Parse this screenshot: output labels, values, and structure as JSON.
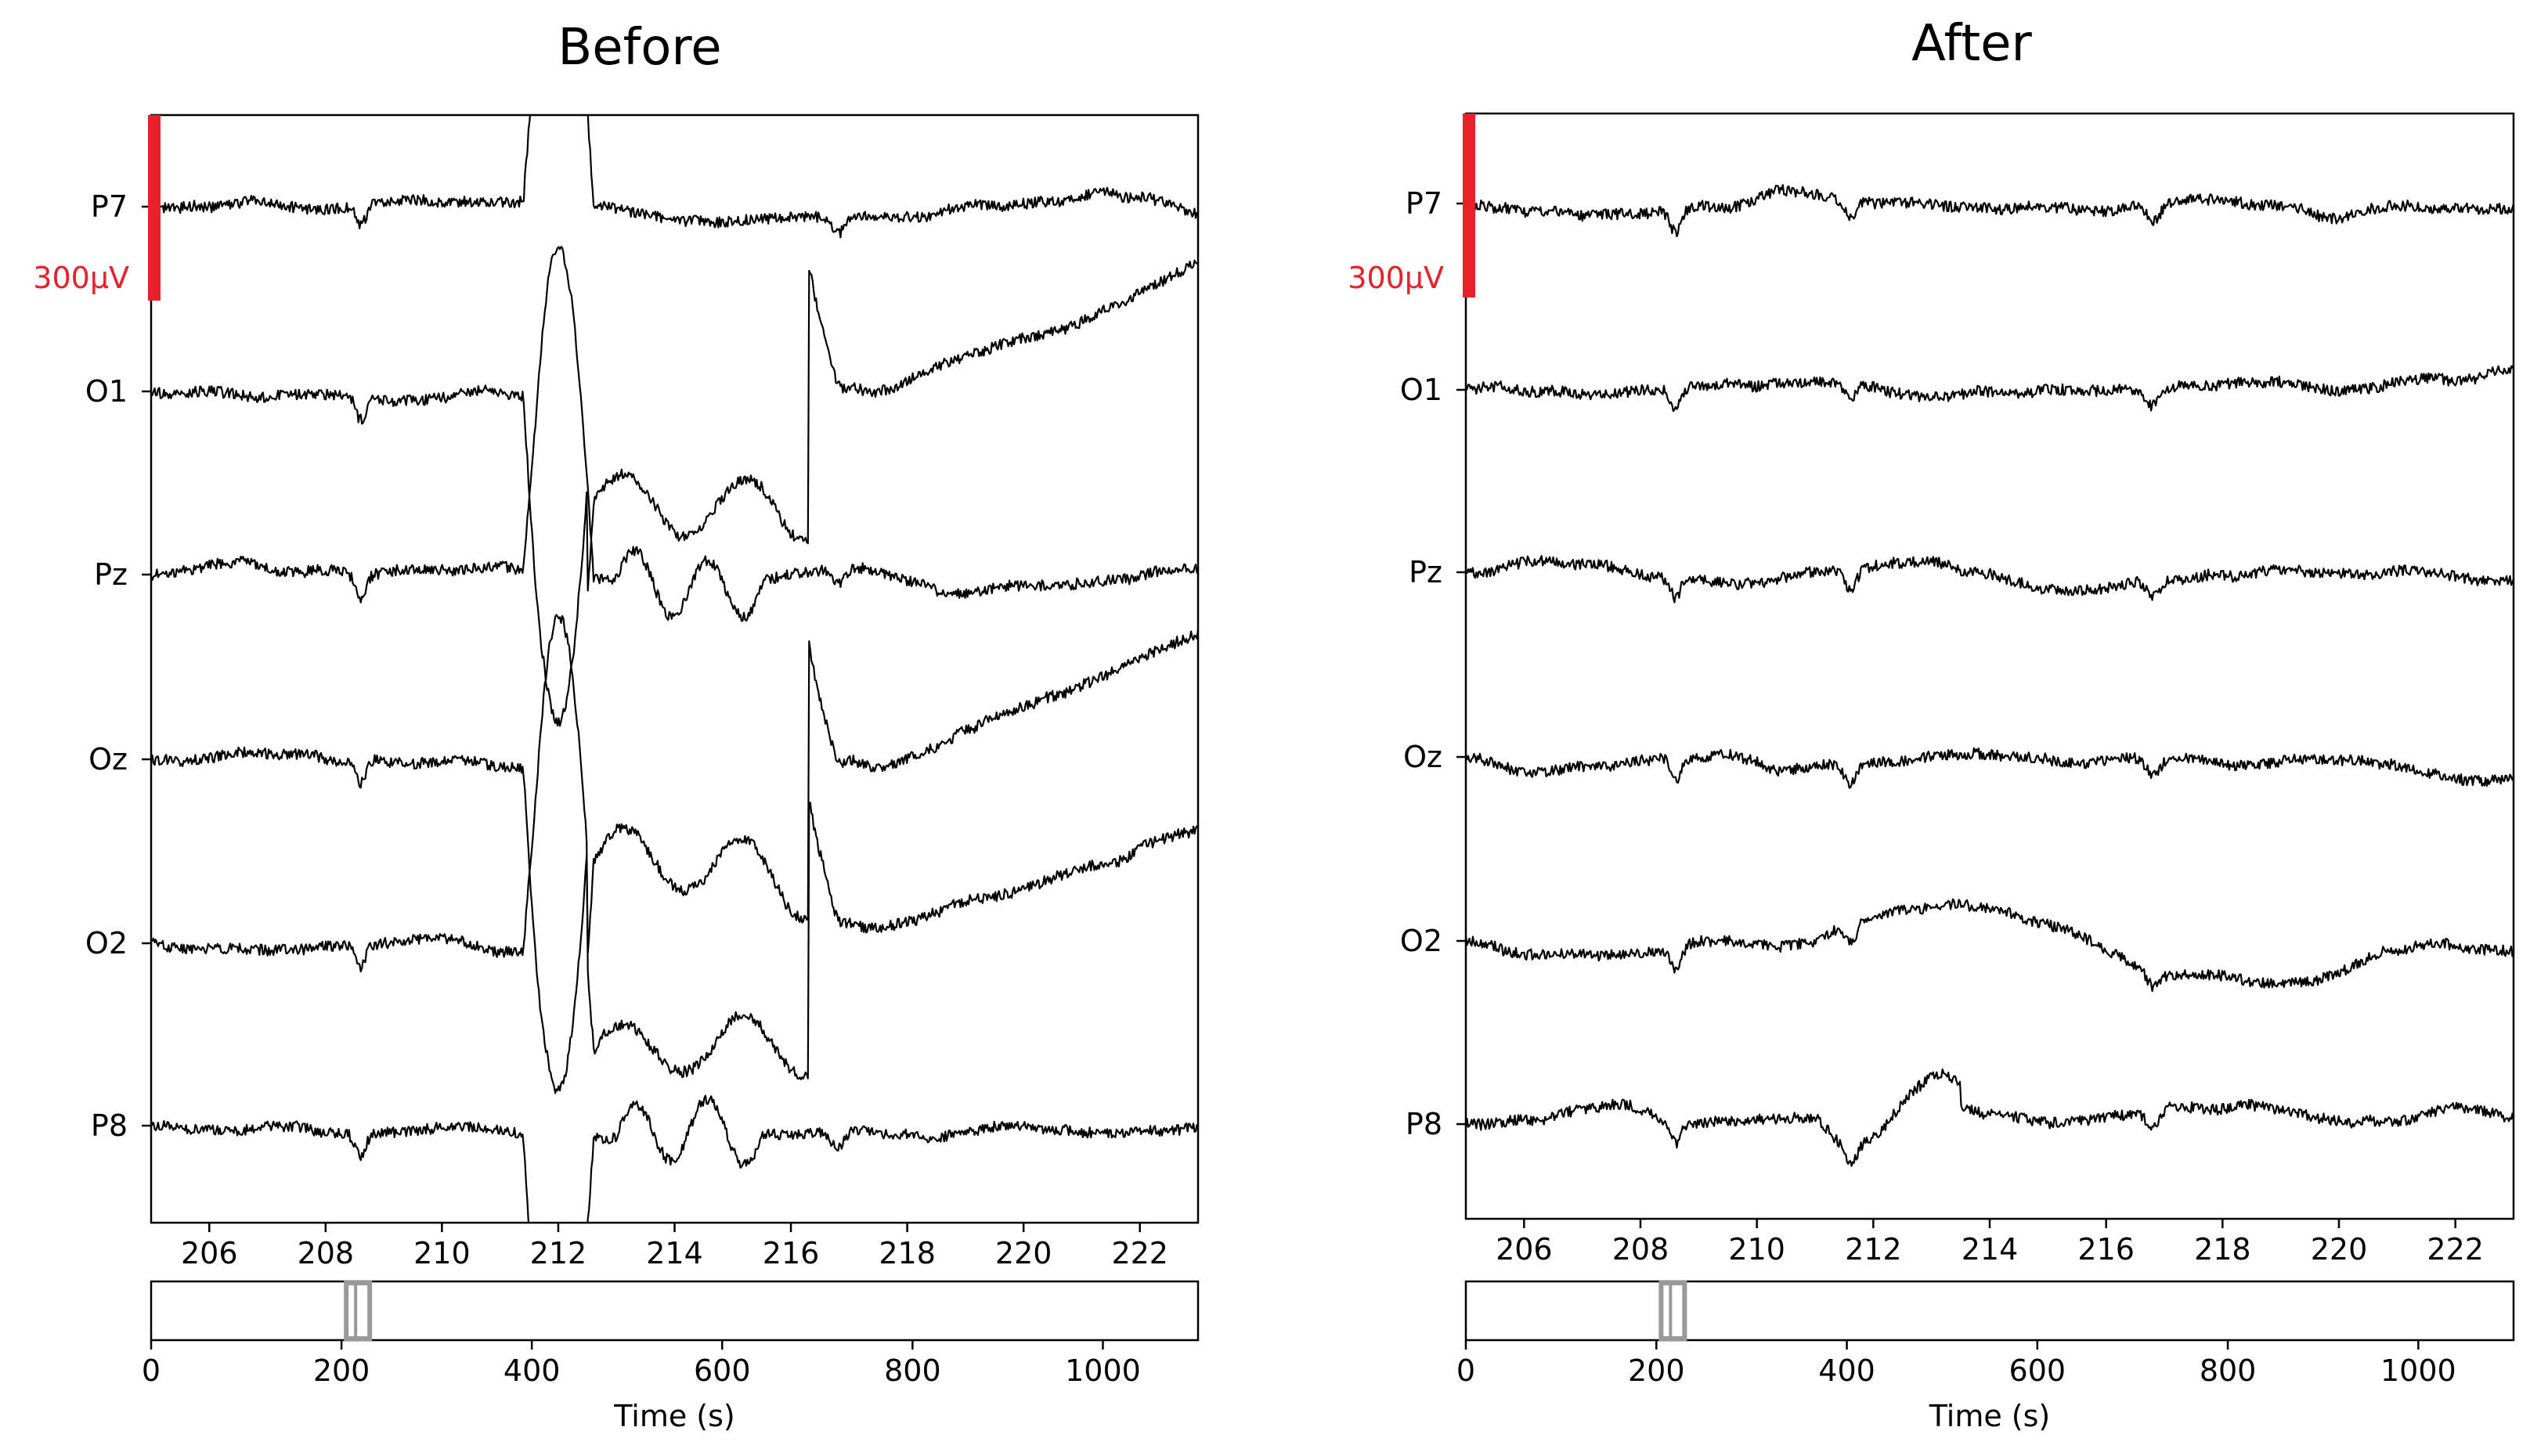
{
  "chart_data": [
    {
      "type": "line",
      "title": "Before",
      "channels": [
        "P7",
        "O1",
        "Pz",
        "Oz",
        "O2",
        "P8"
      ],
      "xlim": [
        205,
        223
      ],
      "xticks": [
        "206",
        "208",
        "210",
        "212",
        "214",
        "216",
        "218",
        "220",
        "222"
      ],
      "scale_bar_label": "300µV",
      "artifact": true,
      "overview": {
        "xlim": [
          0,
          1100
        ],
        "xticks": [
          "0",
          "200",
          "400",
          "600",
          "800",
          "1000"
        ],
        "xlabel": "Time (s)",
        "window": [
          205,
          223
        ]
      }
    },
    {
      "type": "line",
      "title": "After",
      "channels": [
        "P7",
        "O1",
        "Pz",
        "Oz",
        "O2",
        "P8"
      ],
      "xlim": [
        205,
        223
      ],
      "xticks": [
        "206",
        "208",
        "210",
        "212",
        "214",
        "216",
        "218",
        "220",
        "222"
      ],
      "scale_bar_label": "300µV",
      "artifact": false,
      "overview": {
        "xlim": [
          0,
          1100
        ],
        "xticks": [
          "0",
          "200",
          "400",
          "600",
          "800",
          "1000"
        ],
        "xlabel": "Time (s)",
        "window": [
          205,
          223
        ]
      }
    }
  ],
  "colors": {
    "scale_bar": "#e8202a",
    "trace": "#000000",
    "window_marker": "#999999"
  }
}
